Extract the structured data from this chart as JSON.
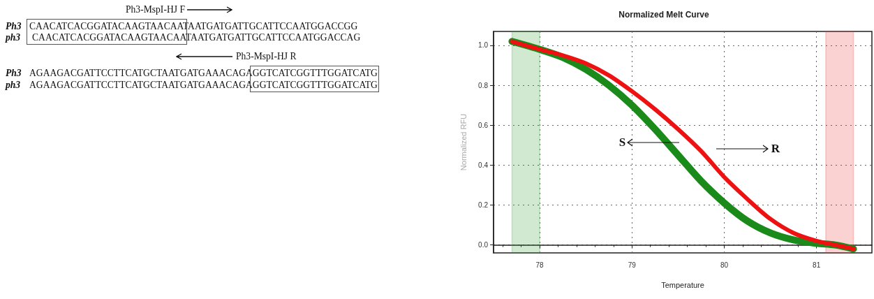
{
  "chart_data": [
    {
      "type": "other",
      "annotations": [
        "Ph3-MspI-HJ F",
        "Ph3",
        "CAACATCACGGATACAAGTAACAATAATGATGATTGCATTCCAATGGACCGG",
        "ph3",
        "CAACATCACGGATACAAGTAACAATAATGATGATTGCATTCCAATGGACCAG",
        "Ph3-MspI-HJ R",
        "Ph3",
        "AGAAGACGATTCCTTCATGCTAATGATGAAACAGAGGTCATCGGTTTGGATCATG",
        "ph3",
        "AGAAGACGATTCCTTCATGCTAATGATGAAACAGAGGTCATCGGTTTGGATCATG"
      ]
    },
    {
      "type": "line",
      "title": "Normalized Melt Curve",
      "xlabel": "Temperature",
      "ylabel": "Normalized RFU",
      "xlim": [
        77.5,
        81.6
      ],
      "xticks": [
        78,
        79,
        80,
        81
      ],
      "ylim": [
        -0.04,
        1.07
      ],
      "yticks": [
        {
          "value": 0,
          "label": "0.0"
        },
        0.2,
        0.4,
        0.6,
        0.8,
        {
          "value": 1,
          "label": "1.0"
        }
      ],
      "grid": true,
      "marker": "none",
      "line_style": "solid",
      "x": [
        77.7,
        78,
        78.25,
        78.5,
        78.75,
        79,
        79.25,
        79.5,
        79.75,
        80,
        80.25,
        80.5,
        80.75,
        81,
        81.2,
        81.4
      ],
      "series": [
        {
          "color": "#ee1111",
          "values": [
            1.02,
            0.98,
            0.95,
            0.91,
            0.85,
            0.77,
            0.68,
            0.58,
            0.47,
            0.34,
            0.23,
            0.13,
            0.06,
            0.02,
            0.0,
            -0.02
          ]
        },
        {
          "color": "#1a8a1a",
          "values": [
            1.02,
            0.98,
            0.94,
            0.88,
            0.8,
            0.7,
            0.58,
            0.45,
            0.32,
            0.21,
            0.12,
            0.06,
            0.025,
            0.008,
            0.0,
            -0.02
          ]
        }
      ],
      "bands": [
        {
          "axis": "x",
          "from": 77.7,
          "to": 78.0,
          "color": "#2e9a2e"
        },
        {
          "axis": "x",
          "from": 81.1,
          "to": 81.4,
          "color": "#e83030"
        }
      ],
      "annotations": [
        "S",
        "R"
      ]
    }
  ]
}
